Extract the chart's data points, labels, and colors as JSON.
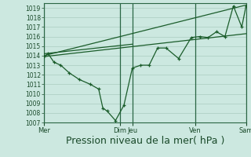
{
  "bg_color": "#cce8e0",
  "grid_color": "#aaccc0",
  "line_color": "#1a5c2a",
  "marker_color": "#1a5c2a",
  "xlabel": "Pression niveau de la mer( hPa )",
  "xlabel_fontsize": 9,
  "ylim": [
    1007,
    1019.5
  ],
  "ytick_vals": [
    1007,
    1008,
    1009,
    1010,
    1011,
    1012,
    1013,
    1014,
    1015,
    1016,
    1017,
    1018,
    1019
  ],
  "xlim": [
    0,
    24
  ],
  "xtick_positions": [
    0,
    9,
    10.5,
    18,
    24
  ],
  "xtick_labels": [
    "Mer",
    "Dim",
    "Jeu",
    "Ven",
    "Sam"
  ],
  "vline_positions": [
    0,
    9,
    10.5,
    18,
    24
  ],
  "main_line": {
    "x": [
      0.0,
      0.5,
      1.2,
      2.0,
      3.0,
      4.2,
      5.5,
      6.5,
      7.0,
      7.5,
      8.5,
      9.5,
      10.5,
      11.5,
      12.5,
      13.5,
      14.5,
      16.0,
      17.5,
      18.5,
      19.5,
      20.5,
      21.5,
      22.5,
      23.5,
      24.0
    ],
    "y": [
      1013.9,
      1014.2,
      1013.3,
      1013.0,
      1012.2,
      1011.5,
      1011.0,
      1010.5,
      1008.5,
      1008.2,
      1007.2,
      1008.8,
      1012.7,
      1013.0,
      1013.0,
      1014.8,
      1014.8,
      1013.7,
      1015.9,
      1016.0,
      1015.9,
      1016.5,
      1016.0,
      1019.2,
      1017.0,
      1019.2
    ]
  },
  "trend_line1": {
    "x": [
      0,
      24
    ],
    "y": [
      1014.0,
      1019.3
    ]
  },
  "trend_line2": {
    "x": [
      0,
      24
    ],
    "y": [
      1013.9,
      1016.3
    ]
  },
  "trend_line3": {
    "x": [
      0,
      10.5
    ],
    "y": [
      1014.2,
      1015.2
    ]
  }
}
